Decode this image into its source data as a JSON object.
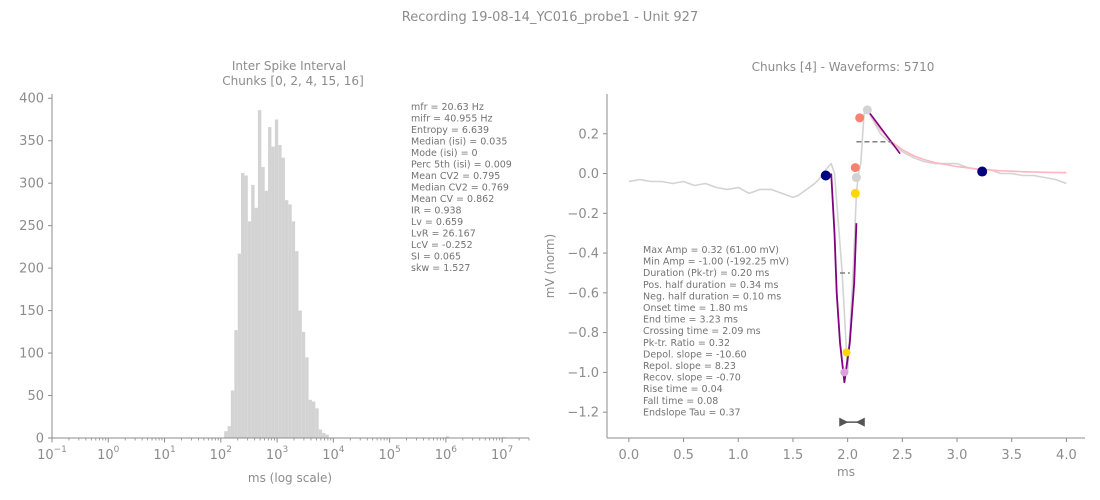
{
  "figure": {
    "title": "Recording 19-08-14_YC016_probe1 - Unit 927"
  },
  "colors": {
    "text": "#8c8c8c",
    "stats_text": "#737373",
    "axis": "#8c8c8c",
    "hist_bar": "#d3d3d3",
    "waveform": "#d3d3d3",
    "trough_fit": "#800080",
    "decay_fit": "#ffb6c1",
    "onset_end_marker": "#000080",
    "peak_marker": "#fa8072",
    "crossing_marker": "#ffd700",
    "halfwidth_line": "#808080"
  },
  "chart_data": [
    {
      "type": "bar",
      "title": "Inter Spike Interval",
      "subtitle": "Chunks [0, 2, 4, 15, 16]",
      "xlabel": "ms (log scale)",
      "ylabel": "",
      "xscale": "log",
      "xlim": [
        0.1,
        30000000
      ],
      "ylim": [
        0,
        405
      ],
      "xticks": [
        0.1,
        1,
        10,
        100,
        1000,
        10000,
        100000,
        1000000,
        10000000
      ],
      "xtick_labels": [
        {
          "base": "10",
          "exp": "−1"
        },
        {
          "base": "10",
          "exp": "0"
        },
        {
          "base": "10",
          "exp": "1"
        },
        {
          "base": "10",
          "exp": "2"
        },
        {
          "base": "10",
          "exp": "3"
        },
        {
          "base": "10",
          "exp": "4"
        },
        {
          "base": "10",
          "exp": "5"
        },
        {
          "base": "10",
          "exp": "6"
        },
        {
          "base": "10",
          "exp": "7"
        }
      ],
      "yticks": [
        0,
        50,
        100,
        150,
        200,
        250,
        300,
        350,
        400
      ],
      "ytick_labels": [
        "0",
        "50",
        "100",
        "150",
        "200",
        "250",
        "300",
        "350",
        "400"
      ],
      "bins": [
        {
          "from": 100,
          "to": 115,
          "value": 0
        },
        {
          "from": 115,
          "to": 132,
          "value": 8
        },
        {
          "from": 132,
          "to": 151,
          "value": 14
        },
        {
          "from": 151,
          "to": 174,
          "value": 56
        },
        {
          "from": 174,
          "to": 200,
          "value": 127
        },
        {
          "from": 200,
          "to": 229,
          "value": 217
        },
        {
          "from": 229,
          "to": 263,
          "value": 312
        },
        {
          "from": 263,
          "to": 302,
          "value": 309
        },
        {
          "from": 302,
          "to": 347,
          "value": 255
        },
        {
          "from": 347,
          "to": 398,
          "value": 298
        },
        {
          "from": 398,
          "to": 457,
          "value": 271
        },
        {
          "from": 457,
          "to": 525,
          "value": 386
        },
        {
          "from": 525,
          "to": 603,
          "value": 319
        },
        {
          "from": 603,
          "to": 692,
          "value": 291
        },
        {
          "from": 692,
          "to": 794,
          "value": 366
        },
        {
          "from": 794,
          "to": 912,
          "value": 343
        },
        {
          "from": 912,
          "to": 1047,
          "value": 375
        },
        {
          "from": 1047,
          "to": 1202,
          "value": 345
        },
        {
          "from": 1202,
          "to": 1380,
          "value": 330
        },
        {
          "from": 1380,
          "to": 1585,
          "value": 280
        },
        {
          "from": 1585,
          "to": 1820,
          "value": 275
        },
        {
          "from": 1820,
          "to": 2089,
          "value": 255
        },
        {
          "from": 2089,
          "to": 2399,
          "value": 220
        },
        {
          "from": 2399,
          "to": 2754,
          "value": 150
        },
        {
          "from": 2754,
          "to": 3162,
          "value": 125
        },
        {
          "from": 3162,
          "to": 3631,
          "value": 95
        },
        {
          "from": 3631,
          "to": 4169,
          "value": 45
        },
        {
          "from": 4169,
          "to": 4786,
          "value": 43
        },
        {
          "from": 4786,
          "to": 5495,
          "value": 35
        },
        {
          "from": 5495,
          "to": 6310,
          "value": 10
        },
        {
          "from": 6310,
          "to": 7244,
          "value": 6
        },
        {
          "from": 7244,
          "to": 8318,
          "value": 4
        },
        {
          "from": 1000000,
          "to": 1150000,
          "value": 2
        },
        {
          "from": 10000000,
          "to": 11500000,
          "value": 1
        }
      ],
      "annotation": [
        "mfr = 20.63 Hz",
        "mifr = 40.955 Hz",
        "Entropy = 6.639",
        "Median (isi) = 0.035",
        "Mode (isi) = 0",
        "Perc 5th (isi) = 0.009",
        "Mean CV2 = 0.795",
        "Median CV2 = 0.769",
        "Mean CV = 0.862",
        "IR = 0.938",
        "Lv = 0.659",
        "LvR = 26.167",
        "LcV = -0.252",
        "SI = 0.065",
        "skw = 1.527"
      ]
    },
    {
      "type": "line",
      "title": "Chunks [4] - Waveforms: 5710",
      "xlabel": "ms",
      "ylabel": "mV (norm)",
      "xlim": [
        -0.2,
        4.17
      ],
      "ylim": [
        -1.33,
        0.4
      ],
      "xticks": [
        0,
        0.5,
        1,
        1.5,
        2,
        2.5,
        3,
        3.5,
        4
      ],
      "xtick_labels": [
        "0.0",
        "0.5",
        "1.0",
        "1.5",
        "2.0",
        "2.5",
        "3.0",
        "3.5",
        "4.0"
      ],
      "yticks": [
        -1.2,
        -1.0,
        -0.8,
        -0.6,
        -0.4,
        -0.2,
        0.0,
        0.2
      ],
      "ytick_labels": [
        "−1.2",
        "−1.0",
        "−0.8",
        "−0.6",
        "−0.4",
        "−0.2",
        "0.0",
        "0.2"
      ],
      "waveform": {
        "x": [
          0,
          0.1,
          0.2,
          0.3,
          0.4,
          0.5,
          0.6,
          0.7,
          0.8,
          0.9,
          1.0,
          1.1,
          1.2,
          1.3,
          1.4,
          1.5,
          1.55,
          1.6,
          1.7,
          1.75,
          1.8,
          1.85,
          1.88,
          1.95,
          2.0,
          2.05,
          2.08,
          2.1,
          2.12,
          2.15,
          2.18,
          2.2,
          2.3,
          2.4,
          2.5,
          2.6,
          2.7,
          2.8,
          2.9,
          3.0,
          3.1,
          3.2,
          3.3,
          3.4,
          3.5,
          3.6,
          3.7,
          3.8,
          3.9,
          4.0
        ],
        "y": [
          -0.04,
          -0.03,
          -0.04,
          -0.04,
          -0.05,
          -0.04,
          -0.06,
          -0.05,
          -0.07,
          -0.08,
          -0.07,
          -0.1,
          -0.08,
          -0.08,
          -0.1,
          -0.12,
          -0.11,
          -0.09,
          -0.05,
          -0.02,
          0.02,
          0.05,
          0.0,
          -0.5,
          -1.0,
          -0.5,
          -0.1,
          0.0,
          0.05,
          0.3,
          0.32,
          0.3,
          0.2,
          0.15,
          0.11,
          0.08,
          0.06,
          0.05,
          0.05,
          0.05,
          0.03,
          0.02,
          0.02,
          0.0,
          0.0,
          -0.01,
          -0.01,
          -0.02,
          -0.03,
          -0.05
        ]
      },
      "trough_fit": {
        "x": [
          1.85,
          1.88,
          1.9,
          1.93,
          1.97,
          2.02,
          2.06,
          2.08
        ],
        "y": [
          0.0,
          -0.3,
          -0.6,
          -0.85,
          -1.05,
          -0.85,
          -0.55,
          -0.25
        ]
      },
      "repol_line": {
        "x": [
          2.18,
          2.48
        ],
        "y": [
          0.32,
          0.1
        ]
      },
      "decay_fit": {
        "x": [
          2.2,
          2.3,
          2.4,
          2.5,
          2.6,
          2.7,
          2.8,
          2.9,
          3.0,
          3.2,
          3.4,
          3.6,
          3.8,
          4.0
        ],
        "y": [
          0.3,
          0.22,
          0.16,
          0.12,
          0.09,
          0.07,
          0.055,
          0.045,
          0.035,
          0.022,
          0.014,
          0.009,
          0.006,
          0.004
        ]
      },
      "halfwidth_pos": {
        "x": [
          2.08,
          2.4
        ],
        "y": [
          0.16,
          0.16
        ]
      },
      "halfwidth_neg": {
        "x": [
          1.93,
          2.02
        ],
        "y": [
          -0.5,
          -0.5
        ]
      },
      "markers": [
        {
          "name": "onset",
          "x": 1.8,
          "y": -0.01,
          "color": "#000080",
          "r": 5
        },
        {
          "name": "end",
          "x": 3.23,
          "y": 0.01,
          "color": "#000080",
          "r": 5
        },
        {
          "name": "peak-pre",
          "x": 2.11,
          "y": 0.28,
          "color": "#fa8072",
          "r": 4.5
        },
        {
          "name": "peak",
          "x": 2.18,
          "y": 0.32,
          "color": "#d3d3d3",
          "r": 4.5
        },
        {
          "name": "repol-point",
          "x": 2.07,
          "y": 0.03,
          "color": "#fa8072",
          "r": 4.5
        },
        {
          "name": "mid-point",
          "x": 2.08,
          "y": -0.02,
          "color": "#d3d3d3",
          "r": 4.5
        },
        {
          "name": "crossing",
          "x": 2.07,
          "y": -0.1,
          "color": "#ffd700",
          "r": 4.5
        },
        {
          "name": "trough-crossing",
          "x": 1.99,
          "y": -0.9,
          "color": "#ffd700",
          "r": 4
        },
        {
          "name": "trough",
          "x": 1.97,
          "y": -1.0,
          "color": "#dda0dd",
          "r": 4
        }
      ],
      "duration_bar": {
        "x_start": 1.96,
        "x_end": 2.12,
        "y": -1.25
      },
      "annotation": [
        "Max Amp = 0.32 (61.00 mV)",
        "Min Amp = -1.00 (-192.25 mV)",
        "Duration (Pk-tr) = 0.20 ms",
        "Pos. half duration = 0.34 ms",
        "Neg. half duration = 0.10 ms",
        "Onset time = 1.80 ms",
        "End time = 3.23 ms",
        "Crossing time = 2.09 ms",
        "Pk-tr. Ratio = 0.32",
        "Depol. slope = -10.60",
        "Repol. slope = 8.23",
        "Recov. slope = -0.70",
        "Rise time = 0.04",
        "Fall time = 0.08",
        "Endslope Tau = 0.37"
      ]
    }
  ]
}
